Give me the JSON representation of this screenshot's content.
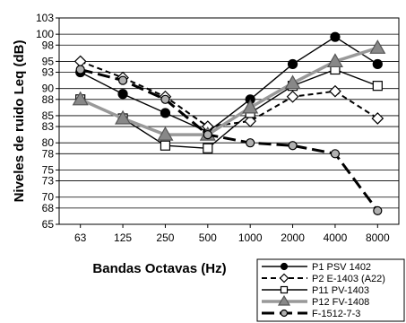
{
  "chart_data": {
    "type": "line",
    "xlabel": "Bandas Octavas (Hz)",
    "ylabel": "Niveles de ruido Leq (dB)",
    "categories": [
      "63",
      "125",
      "250",
      "500",
      "1000",
      "2000",
      "4000",
      "8000"
    ],
    "yticks": [
      65,
      68,
      70,
      73,
      75,
      78,
      80,
      83,
      85,
      88,
      90,
      93,
      95,
      98,
      100,
      103
    ],
    "ylim": [
      65,
      103
    ],
    "grid": true,
    "legend_position": "bottom-right",
    "series": [
      {
        "name": "P1 PSV 1402",
        "color": "#000000",
        "style": "solid",
        "width": 1.4,
        "marker": "circle",
        "marker_fill": "#000000",
        "values": [
          93,
          89,
          85.5,
          82,
          88,
          94.5,
          99.5,
          94.5
        ]
      },
      {
        "name": "P2 E-1403 (A22)",
        "color": "#000000",
        "style": "dash",
        "width": 2,
        "marker": "diamond",
        "marker_fill": "#ffffff",
        "values": [
          95,
          92,
          88.5,
          83,
          84,
          88.5,
          89.5,
          84.5
        ]
      },
      {
        "name": "P11 PV-1403",
        "color": "#000000",
        "style": "solid",
        "width": 1.4,
        "marker": "square",
        "marker_fill": "#ffffff",
        "values": [
          88,
          84.5,
          79.5,
          79,
          85.5,
          90.5,
          93.5,
          90.5
        ]
      },
      {
        "name": "P12 FV-1408",
        "color": "#999999",
        "style": "solid",
        "width": 3.5,
        "marker": "triangle",
        "marker_fill": "#888888",
        "values": [
          88,
          84.5,
          81.5,
          81.5,
          86.5,
          91,
          95,
          97.5
        ]
      },
      {
        "name": "F-1512-7-3",
        "color": "#000000",
        "style": "longdash",
        "width": 3,
        "marker": "circle",
        "marker_fill": "#b0b0b0",
        "values": [
          93.5,
          91.5,
          88,
          81.5,
          80,
          79.5,
          78,
          67.5
        ]
      }
    ]
  }
}
